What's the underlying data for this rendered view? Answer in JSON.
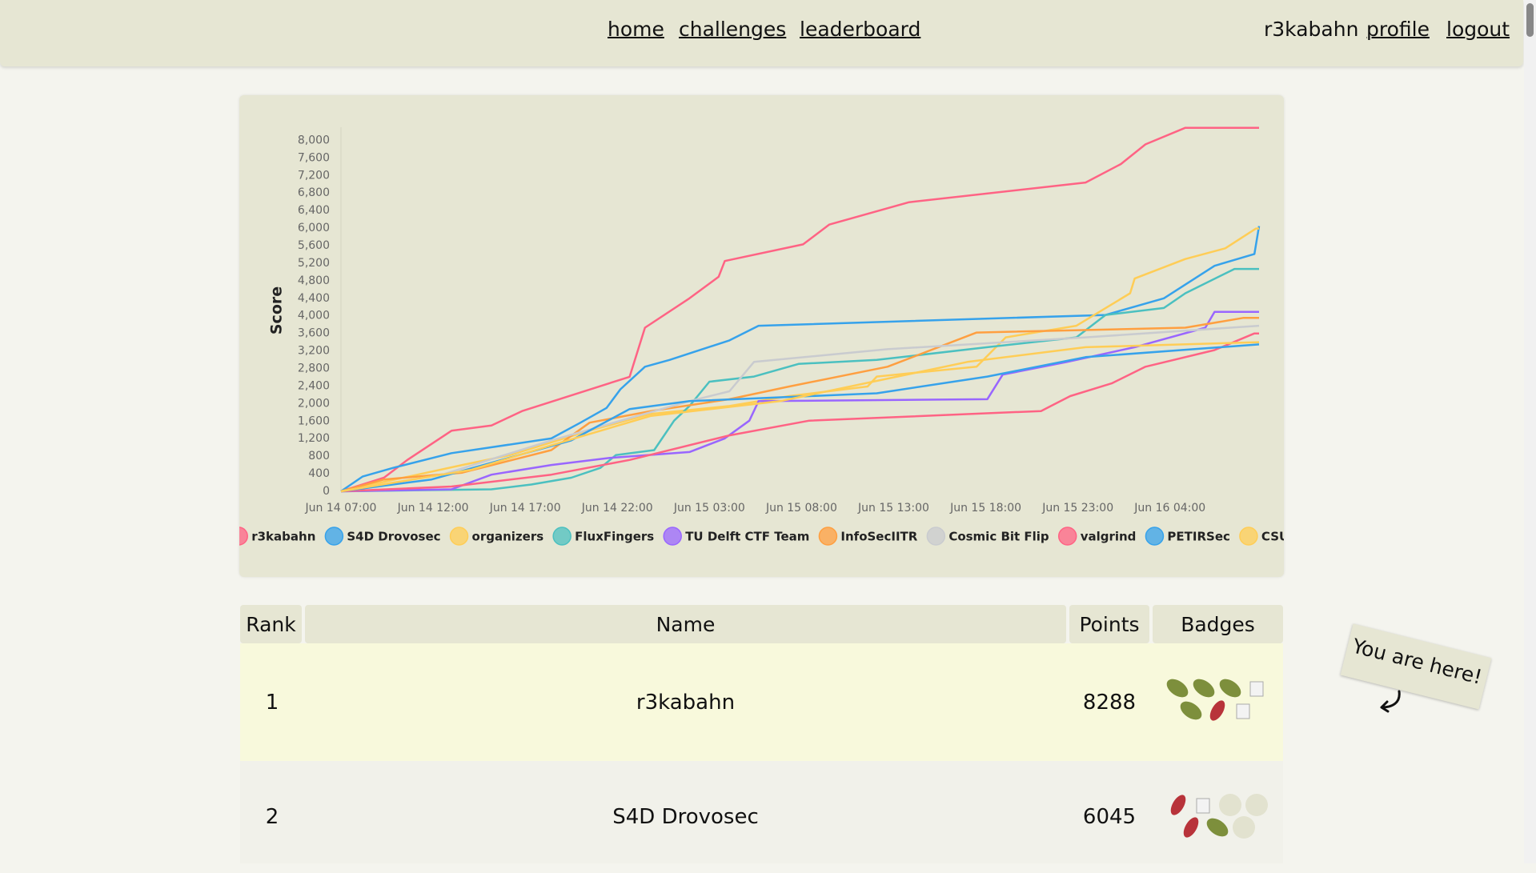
{
  "nav": {
    "links": [
      "home",
      "challenges",
      "leaderboard"
    ],
    "user": "r3kabahn",
    "profile": "profile",
    "logout": "logout"
  },
  "chart_data": {
    "type": "line",
    "y_label": "Score",
    "xlim": [
      "Jun 14 07:00",
      "Jun 16 08:50"
    ],
    "xticks": [
      "Jun 14 07:00",
      "Jun 14 12:00",
      "Jun 14 17:00",
      "Jun 14 22:00",
      "Jun 15 03:00",
      "Jun 15 08:00",
      "Jun 15 13:00",
      "Jun 15 18:00",
      "Jun 15 23:00",
      "Jun 16 04:00"
    ],
    "ylim": [
      0,
      8300
    ],
    "yticks": [
      0,
      400,
      800,
      {
        "value": 1200,
        "label": "1,200"
      },
      {
        "value": 1600,
        "label": "1,600"
      },
      {
        "value": 2000,
        "label": "2,000"
      },
      {
        "value": 2400,
        "label": "2,400"
      },
      {
        "value": 2800,
        "label": "2,800"
      },
      {
        "value": 3200,
        "label": "3,200"
      },
      {
        "value": 3600,
        "label": "3,600"
      },
      {
        "value": 4000,
        "label": "4,000"
      },
      {
        "value": 4400,
        "label": "4,400"
      },
      {
        "value": 4800,
        "label": "4,800"
      },
      {
        "value": 5200,
        "label": "5,200"
      },
      {
        "value": 5600,
        "label": "5,600"
      },
      {
        "value": 6000,
        "label": "6,000"
      },
      {
        "value": 6400,
        "label": "6,400"
      },
      {
        "value": 6800,
        "label": "6,800"
      },
      {
        "value": 7200,
        "label": "7,200"
      },
      {
        "value": 7600,
        "label": "7,600"
      },
      {
        "value": 8000,
        "label": "8,000"
      }
    ],
    "series": [
      {
        "name": "r3kabahn",
        "color": "#ff6384",
        "x": [
          "Jun 14 07:00",
          "Jun 14 09:20",
          "Jun 14 10:35",
          "Jun 14 13:00",
          "Jun 14 15:10",
          "Jun 14 16:50",
          "Jun 14 20:30",
          "Jun 14 22:40",
          "Jun 14 23:30",
          "Jun 15 01:55",
          "Jun 15 03:30",
          "Jun 15 03:50",
          "Jun 15 08:05",
          "Jun 15 09:30",
          "Jun 15 13:50",
          "Jun 15 23:25",
          "Jun 16 01:20",
          "Jun 16 02:40",
          "Jun 16 04:50",
          "Jun 16 08:50"
        ],
        "values": [
          0,
          310,
          710,
          1380,
          1500,
          1830,
          2320,
          2610,
          3730,
          4400,
          4890,
          5250,
          5630,
          6080,
          6590,
          7040,
          7460,
          7910,
          8288,
          8288
        ]
      },
      {
        "name": "S4D Drovosec",
        "color": "#36a2eb",
        "x": [
          "Jun 14 07:00",
          "Jun 14 08:10",
          "Jun 14 09:50",
          "Jun 14 13:00",
          "Jun 14 18:25",
          "Jun 14 20:00",
          "Jun 14 21:25",
          "Jun 14 22:10",
          "Jun 14 23:30",
          "Jun 15 00:50",
          "Jun 15 04:05",
          "Jun 15 05:40",
          "Jun 16 00:30",
          "Jun 16 03:40",
          "Jun 16 06:25",
          "Jun 16 08:35",
          "Jun 16 08:50"
        ],
        "values": [
          0,
          335,
          535,
          870,
          1205,
          1565,
          1900,
          2325,
          2840,
          2995,
          3440,
          3775,
          4020,
          4400,
          5140,
          5410,
          6045
        ]
      },
      {
        "name": "organizers",
        "color": "#ffcd56",
        "x": [
          "Jun 14 07:00",
          "Jun 14 08:40",
          "Jun 14 13:35",
          "Jun 14 16:10",
          "Jun 14 20:30",
          "Jun 14 23:50",
          "Jun 15 04:05",
          "Jun 15 07:20",
          "Jun 15 11:35",
          "Jun 15 12:05",
          "Jun 15 17:30",
          "Jun 15 19:05",
          "Jun 15 22:55",
          "Jun 16 01:50",
          "Jun 16 02:05",
          "Jun 16 04:50",
          "Jun 16 07:00",
          "Jun 16 08:40",
          "Jun 16 08:50"
        ],
        "values": [
          0,
          155,
          600,
          825,
          1385,
          1765,
          1945,
          2170,
          2390,
          2615,
          2840,
          3510,
          3775,
          4515,
          4850,
          5295,
          5540,
          5990,
          5990
        ]
      },
      {
        "name": "FluxFingers",
        "color": "#4bc0c0",
        "x": [
          "Jun 14 07:00",
          "Jun 14 15:10",
          "Jun 14 17:20",
          "Jun 14 19:30",
          "Jun 14 21:05",
          "Jun 14 21:55",
          "Jun 15 00:00",
          "Jun 15 01:05",
          "Jun 15 01:55",
          "Jun 15 03:00",
          "Jun 15 05:25",
          "Jun 15 07:50",
          "Jun 15 12:05",
          "Jun 15 18:05",
          "Jun 15 22:55",
          "Jun 16 00:30",
          "Jun 16 03:40",
          "Jun 16 04:50",
          "Jun 16 07:30",
          "Jun 16 08:50"
        ],
        "values": [
          0,
          45,
          155,
          310,
          535,
          825,
          940,
          1610,
          1945,
          2500,
          2615,
          2905,
          2995,
          3285,
          3510,
          4020,
          4180,
          4515,
          5070,
          5070
        ]
      },
      {
        "name": "TU Delft CTF Team",
        "color": "#9966ff",
        "x": [
          "Jun 14 07:00",
          "Jun 14 13:00",
          "Jun 14 15:10",
          "Jun 14 18:25",
          "Jun 14 21:35",
          "Jun 15 01:55",
          "Jun 15 03:50",
          "Jun 15 05:10",
          "Jun 15 05:40",
          "Jun 15 18:05",
          "Jun 15 18:55",
          "Jun 15 22:25",
          "Jun 16 02:05",
          "Jun 16 05:55",
          "Jun 16 06:25",
          "Jun 16 08:50"
        ],
        "values": [
          0,
          45,
          380,
          600,
          760,
          895,
          1205,
          1610,
          2055,
          2100,
          2660,
          2950,
          3285,
          3730,
          4090,
          4090
        ]
      },
      {
        "name": "InfoSecIITR",
        "color": "#ff9f40",
        "x": [
          "Jun 14 07:00",
          "Jun 14 09:20",
          "Jun 14 13:35",
          "Jun 14 18:25",
          "Jun 14 20:30",
          "Jun 14 23:50",
          "Jun 15 04:05",
          "Jun 15 07:20",
          "Jun 15 12:40",
          "Jun 15 17:30",
          "Jun 16 04:50",
          "Jun 16 08:00",
          "Jun 16 08:50"
        ],
        "values": [
          0,
          270,
          425,
          940,
          1565,
          1830,
          2100,
          2390,
          2840,
          3620,
          3730,
          3955,
          3955
        ]
      },
      {
        "name": "Cosmic Bit Flip",
        "color": "#c9cbcf",
        "x": [
          "Jun 14 07:00",
          "Jun 14 12:30",
          "Jun 14 18:25",
          "Jun 15 01:55",
          "Jun 15 04:05",
          "Jun 15 05:25",
          "Jun 15 12:40",
          "Jun 15 23:25",
          "Jun 16 08:50"
        ],
        "values": [
          0,
          380,
          1160,
          2055,
          2280,
          2950,
          3240,
          3510,
          3775
        ]
      },
      {
        "name": "valgrind",
        "color": "#ff6384",
        "x": [
          "Jun 14 07:00",
          "Jun 14 13:00",
          "Jun 14 18:25",
          "Jun 14 22:40",
          "Jun 15 04:05",
          "Jun 15 08:25",
          "Jun 15 21:00",
          "Jun 15 22:35",
          "Jun 16 00:50",
          "Jun 16 02:40",
          "Jun 16 06:25",
          "Jun 16 08:35",
          "Jun 16 08:50"
        ],
        "values": [
          0,
          110,
          380,
          715,
          1275,
          1610,
          1830,
          2170,
          2460,
          2840,
          3220,
          3600,
          3600
        ]
      },
      {
        "name": "PETIRSec",
        "color": "#36a2eb",
        "x": [
          "Jun 14 07:00",
          "Jun 14 11:55",
          "Jun 14 19:30",
          "Jun 14 22:40",
          "Jun 15 01:55",
          "Jun 15 12:05",
          "Jun 15 18:05",
          "Jun 15 23:25",
          "Jun 16 08:50"
        ],
        "values": [
          0,
          270,
          1160,
          1875,
          2055,
          2235,
          2615,
          3060,
          3350
        ]
      },
      {
        "name": "CSUI",
        "color": "#ffcd56",
        "x": [
          "Jun 14 07:00",
          "Jun 14 14:05",
          "Jun 14 18:25",
          "Jun 14 23:50",
          "Jun 15 06:50",
          "Jun 15 17:00",
          "Jun 15 23:25",
          "Jun 16 08:50"
        ],
        "values": [
          0,
          490,
          1050,
          1720,
          2055,
          2950,
          3285,
          3400
        ]
      }
    ]
  },
  "table": {
    "columns": [
      "Rank",
      "Name",
      "Points",
      "Badges"
    ],
    "rows": [
      [
        1,
        "r3kabahn",
        8288
      ],
      [
        2,
        "S4D Drovosec",
        6045
      ]
    ]
  },
  "annotation": "You are here!"
}
